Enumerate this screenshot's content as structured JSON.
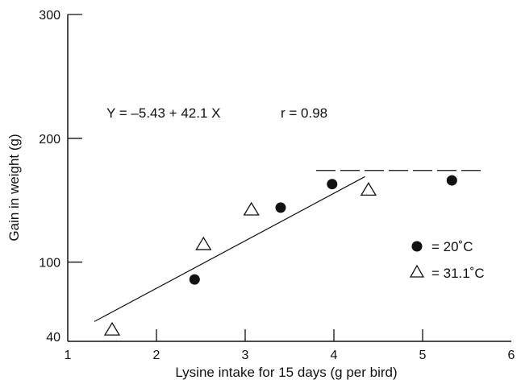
{
  "chart_data": {
    "type": "scatter",
    "title": "",
    "xlabel": "Lysine intake for 15 days (g per bird)",
    "ylabel": "Gain in weight (g)",
    "xlim": [
      1,
      6
    ],
    "ylim": [
      36,
      300
    ],
    "x_ticks": [
      1,
      2,
      3,
      4,
      5,
      6
    ],
    "y_ticks": [
      40,
      100,
      200,
      300
    ],
    "x_tick_labels": [
      "1",
      "2",
      "3",
      "4",
      "5",
      "6"
    ],
    "y_tick_labels": [
      "40",
      "100",
      "200",
      "300"
    ],
    "series": [
      {
        "name": "= 20˚C",
        "marker": "filled-circle",
        "color": "#111111",
        "points": [
          {
            "x": 2.43,
            "y": 86
          },
          {
            "x": 3.4,
            "y": 144
          },
          {
            "x": 3.98,
            "y": 163
          },
          {
            "x": 5.33,
            "y": 166
          }
        ]
      },
      {
        "name": "= 31.1˚C",
        "marker": "open-triangle",
        "color": "#111111",
        "points": [
          {
            "x": 1.5,
            "y": 45
          },
          {
            "x": 2.53,
            "y": 114
          },
          {
            "x": 3.07,
            "y": 142
          },
          {
            "x": 4.39,
            "y": 158
          }
        ]
      }
    ],
    "regression_line": {
      "x_start": 1.3,
      "y_start": 52,
      "x_end": 4.35,
      "y_end": 169
    },
    "plateau_line": {
      "x_start": 3.8,
      "x_end": 5.68,
      "y": 174,
      "style": "dashed"
    },
    "annotations": {
      "equation": "Y = –5.43 + 42.1 X",
      "correlation": "r = 0.98"
    },
    "legend_placement": "right",
    "grid": false
  }
}
